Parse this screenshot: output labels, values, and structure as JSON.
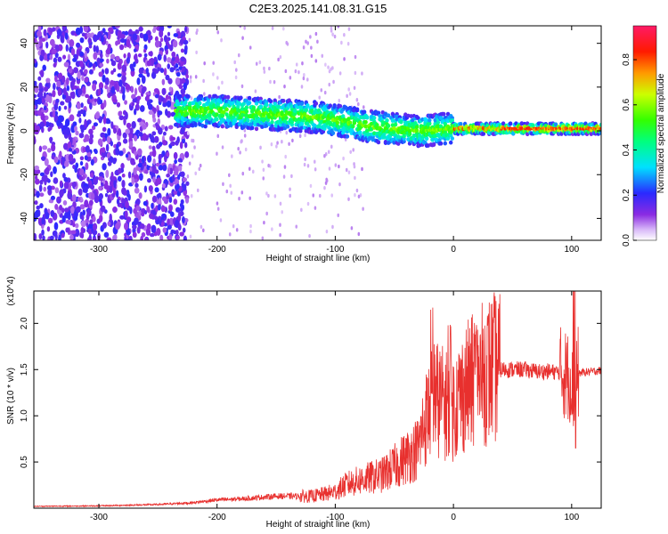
{
  "title": "C2E3.2025.141.08.31.G15",
  "chart_data": [
    {
      "type": "heatmap",
      "xlabel": "Height of straight line (km)",
      "ylabel": "Frequency (Hz)",
      "xlim": [
        -355,
        125
      ],
      "ylim": [
        -50,
        48
      ],
      "x_ticks": [
        -300,
        -200,
        -100,
        0,
        100
      ],
      "x_tick_labels": [
        "-300",
        "-200",
        "-100",
        "0",
        "100"
      ],
      "y_ticks": [
        -40,
        -20,
        0,
        20,
        40
      ],
      "y_tick_labels": [
        "-40",
        "-20",
        "0",
        "20",
        "40"
      ],
      "colorbar": {
        "label": "Normalized spectral amplitude",
        "range": [
          0,
          0.95
        ],
        "ticks": [
          0.0,
          0.2,
          0.4,
          0.6,
          0.8
        ],
        "tick_labels": [
          "0.0",
          "0.2",
          "0.4",
          "0.6",
          "0.8"
        ],
        "colormap": "rainbow (white-violet-blue-cyan-green-yellow-red-magenta)"
      },
      "ridge": [
        {
          "x": -235,
          "f": 9
        },
        {
          "x": -200,
          "f": 9
        },
        {
          "x": -170,
          "f": 8
        },
        {
          "x": -140,
          "f": 7
        },
        {
          "x": -110,
          "f": 6
        },
        {
          "x": -90,
          "f": 4
        },
        {
          "x": -70,
          "f": 2
        },
        {
          "x": -50,
          "f": 1
        },
        {
          "x": -30,
          "f": 0
        },
        {
          "x": 0,
          "f": 1
        },
        {
          "x": 50,
          "f": 1
        },
        {
          "x": 125,
          "f": 1
        }
      ]
    },
    {
      "type": "line",
      "xlabel": "Height of straight line (km)",
      "ylabel": "SNR (10 * v/v)",
      "y_multiplier": "(x10^4)",
      "xlim": [
        -355,
        125
      ],
      "ylim": [
        0,
        23500
      ],
      "x_ticks": [
        -300,
        -200,
        -100,
        0,
        100
      ],
      "x_tick_labels": [
        "-300",
        "-200",
        "-100",
        "0",
        "100"
      ],
      "y_ticks": [
        5000,
        10000,
        15000,
        20000
      ],
      "y_tick_labels": [
        "0.5",
        "1.0",
        "1.5",
        "2.0"
      ],
      "series_color": "#e8302e",
      "x": [
        -355,
        -300,
        -250,
        -220,
        -200,
        -180,
        -150,
        -120,
        -110,
        -100,
        -90,
        -80,
        -70,
        -60,
        -50,
        -40,
        -30,
        -25,
        -20,
        -15,
        -10,
        -5,
        0,
        5,
        10,
        20,
        30,
        35,
        40,
        50,
        60,
        70,
        80,
        90,
        95,
        100,
        102,
        105,
        110,
        125
      ],
      "y": [
        200,
        250,
        400,
        600,
        900,
        1000,
        1300,
        1300,
        1500,
        1800,
        2600,
        3000,
        3300,
        3600,
        4500,
        5500,
        6500,
        9000,
        11000,
        12000,
        11500,
        11000,
        11000,
        12000,
        13000,
        14000,
        15000,
        15200,
        15000,
        15000,
        15000,
        14800,
        14800,
        14700,
        14500,
        14000,
        10000,
        14600,
        14700,
        14900
      ]
    }
  ]
}
